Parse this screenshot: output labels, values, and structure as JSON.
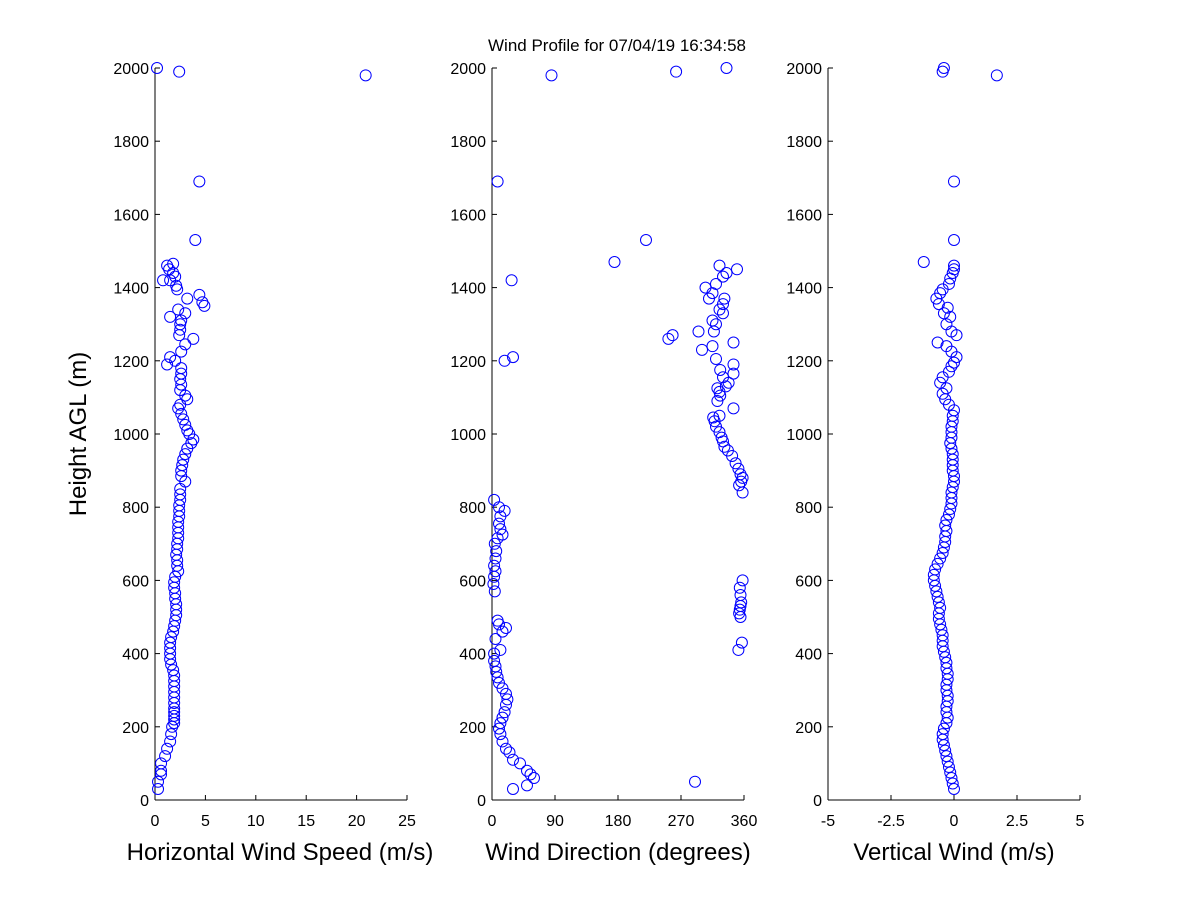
{
  "title": "Wind Profile for  07/04/19 16:34:58",
  "colors": {
    "marker": "#0000ff",
    "axis": "#000000",
    "background": "#ffffff"
  },
  "chart_data": [
    {
      "type": "scatter",
      "name": "horizontal-wind-speed",
      "xlabel": "Horizontal Wind Speed (m/s)",
      "ylabel": "Height AGL (m)",
      "xlim": [
        0,
        25
      ],
      "ylim": [
        0,
        2000
      ],
      "xticks": [
        "0",
        "5",
        "10",
        "15",
        "20",
        "25"
      ],
      "yticks": [
        "0",
        "200",
        "400",
        "600",
        "800",
        "1000",
        "1200",
        "1400",
        "1600",
        "1800",
        "2000"
      ],
      "points": [
        [
          0.3,
          30
        ],
        [
          0.3,
          50
        ],
        [
          0.6,
          70
        ],
        [
          0.6,
          80
        ],
        [
          0.6,
          100
        ],
        [
          1.0,
          120
        ],
        [
          1.2,
          140
        ],
        [
          1.5,
          160
        ],
        [
          1.6,
          180
        ],
        [
          1.7,
          200
        ],
        [
          1.9,
          210
        ],
        [
          1.9,
          220
        ],
        [
          1.9,
          230
        ],
        [
          1.9,
          240
        ],
        [
          1.9,
          250
        ],
        [
          1.9,
          265
        ],
        [
          1.9,
          280
        ],
        [
          1.9,
          295
        ],
        [
          1.9,
          310
        ],
        [
          1.9,
          325
        ],
        [
          1.9,
          340
        ],
        [
          1.8,
          355
        ],
        [
          1.6,
          370
        ],
        [
          1.5,
          385
        ],
        [
          1.5,
          400
        ],
        [
          1.5,
          415
        ],
        [
          1.5,
          430
        ],
        [
          1.6,
          445
        ],
        [
          1.8,
          460
        ],
        [
          1.9,
          475
        ],
        [
          2.0,
          490
        ],
        [
          2.1,
          505
        ],
        [
          2.1,
          520
        ],
        [
          2.1,
          535
        ],
        [
          2.0,
          550
        ],
        [
          2.0,
          565
        ],
        [
          1.9,
          580
        ],
        [
          1.9,
          595
        ],
        [
          2.0,
          610
        ],
        [
          2.3,
          625
        ],
        [
          2.2,
          640
        ],
        [
          2.2,
          655
        ],
        [
          2.1,
          670
        ],
        [
          2.2,
          685
        ],
        [
          2.2,
          700
        ],
        [
          2.3,
          715
        ],
        [
          2.3,
          730
        ],
        [
          2.3,
          745
        ],
        [
          2.3,
          760
        ],
        [
          2.4,
          775
        ],
        [
          2.4,
          790
        ],
        [
          2.4,
          805
        ],
        [
          2.5,
          820
        ],
        [
          2.5,
          835
        ],
        [
          2.5,
          850
        ],
        [
          3.0,
          870
        ],
        [
          2.6,
          885
        ],
        [
          2.6,
          900
        ],
        [
          2.7,
          915
        ],
        [
          2.8,
          930
        ],
        [
          3.0,
          945
        ],
        [
          3.2,
          960
        ],
        [
          3.6,
          975
        ],
        [
          3.8,
          985
        ],
        [
          3.4,
          1000
        ],
        [
          3.2,
          1010
        ],
        [
          3.0,
          1025
        ],
        [
          2.8,
          1040
        ],
        [
          2.6,
          1055
        ],
        [
          2.3,
          1070
        ],
        [
          2.5,
          1080
        ],
        [
          3.2,
          1095
        ],
        [
          3.0,
          1105
        ],
        [
          2.5,
          1120
        ],
        [
          2.6,
          1135
        ],
        [
          2.5,
          1150
        ],
        [
          2.6,
          1165
        ],
        [
          2.6,
          1180
        ],
        [
          2.0,
          1200
        ],
        [
          1.2,
          1190
        ],
        [
          1.5,
          1210
        ],
        [
          2.6,
          1225
        ],
        [
          3.0,
          1245
        ],
        [
          3.8,
          1260
        ],
        [
          2.4,
          1270
        ],
        [
          2.5,
          1285
        ],
        [
          2.5,
          1300
        ],
        [
          2.6,
          1310
        ],
        [
          1.5,
          1320
        ],
        [
          3.0,
          1330
        ],
        [
          2.3,
          1340
        ],
        [
          4.9,
          1350
        ],
        [
          4.7,
          1360
        ],
        [
          3.2,
          1370
        ],
        [
          4.4,
          1380
        ],
        [
          2.2,
          1395
        ],
        [
          2.1,
          1405
        ],
        [
          0.8,
          1420
        ],
        [
          1.5,
          1420
        ],
        [
          2.0,
          1430
        ],
        [
          1.8,
          1440
        ],
        [
          1.4,
          1450
        ],
        [
          1.2,
          1460
        ],
        [
          1.8,
          1465
        ],
        [
          4.0,
          1530
        ],
        [
          4.4,
          1690
        ],
        [
          0.2,
          2000
        ],
        [
          2.4,
          1990
        ],
        [
          20.9,
          1980
        ]
      ]
    },
    {
      "type": "scatter",
      "name": "wind-direction",
      "xlabel": "Wind Direction (degrees)",
      "ylabel": "",
      "xlim": [
        0,
        360
      ],
      "ylim": [
        0,
        2000
      ],
      "xticks": [
        "0",
        "90",
        "180",
        "270",
        "360"
      ],
      "yticks": [
        "0",
        "200",
        "400",
        "600",
        "800",
        "1000",
        "1200",
        "1400",
        "1600",
        "1800",
        "2000"
      ],
      "points": [
        [
          30,
          30
        ],
        [
          290,
          50
        ],
        [
          50,
          40
        ],
        [
          60,
          60
        ],
        [
          55,
          70
        ],
        [
          50,
          80
        ],
        [
          40,
          100
        ],
        [
          30,
          110
        ],
        [
          25,
          130
        ],
        [
          20,
          140
        ],
        [
          15,
          160
        ],
        [
          12,
          180
        ],
        [
          10,
          195
        ],
        [
          12,
          210
        ],
        [
          15,
          225
        ],
        [
          18,
          240
        ],
        [
          20,
          260
        ],
        [
          22,
          275
        ],
        [
          20,
          290
        ],
        [
          15,
          305
        ],
        [
          10,
          320
        ],
        [
          8,
          335
        ],
        [
          6,
          350
        ],
        [
          5,
          365
        ],
        [
          3,
          380
        ],
        [
          3,
          400
        ],
        [
          12,
          410
        ],
        [
          20,
          470
        ],
        [
          15,
          460
        ],
        [
          10,
          480
        ],
        [
          8,
          490
        ],
        [
          5,
          440
        ],
        [
          4,
          570
        ],
        [
          2,
          590
        ],
        [
          3,
          610
        ],
        [
          5,
          625
        ],
        [
          3,
          640
        ],
        [
          5,
          660
        ],
        [
          6,
          680
        ],
        [
          4,
          700
        ],
        [
          8,
          715
        ],
        [
          15,
          725
        ],
        [
          12,
          740
        ],
        [
          10,
          755
        ],
        [
          12,
          775
        ],
        [
          18,
          790
        ],
        [
          10,
          800
        ],
        [
          3,
          820
        ],
        [
          352,
          410
        ],
        [
          357,
          430
        ],
        [
          355,
          500
        ],
        [
          353,
          510
        ],
        [
          354,
          520
        ],
        [
          355,
          530
        ],
        [
          356,
          540
        ],
        [
          355,
          560
        ],
        [
          354,
          580
        ],
        [
          358,
          600
        ],
        [
          358,
          840
        ],
        [
          353,
          860
        ],
        [
          356,
          870
        ],
        [
          358,
          880
        ],
        [
          355,
          890
        ],
        [
          352,
          905
        ],
        [
          348,
          920
        ],
        [
          343,
          940
        ],
        [
          337,
          955
        ],
        [
          332,
          965
        ],
        [
          330,
          980
        ],
        [
          328,
          990
        ],
        [
          325,
          1005
        ],
        [
          320,
          1020
        ],
        [
          318,
          1035
        ],
        [
          316,
          1045
        ],
        [
          325,
          1050
        ],
        [
          345,
          1070
        ],
        [
          322,
          1090
        ],
        [
          326,
          1105
        ],
        [
          325,
          1115
        ],
        [
          322,
          1125
        ],
        [
          334,
          1130
        ],
        [
          338,
          1140
        ],
        [
          330,
          1155
        ],
        [
          345,
          1165
        ],
        [
          326,
          1175
        ],
        [
          345,
          1190
        ],
        [
          320,
          1205
        ],
        [
          300,
          1230
        ],
        [
          315,
          1240
        ],
        [
          345,
          1250
        ],
        [
          317,
          1280
        ],
        [
          295,
          1280
        ],
        [
          320,
          1300
        ],
        [
          330,
          1330
        ],
        [
          315,
          1310
        ],
        [
          325,
          1340
        ],
        [
          330,
          1355
        ],
        [
          332,
          1370
        ],
        [
          310,
          1370
        ],
        [
          315,
          1385
        ],
        [
          305,
          1400
        ],
        [
          320,
          1410
        ],
        [
          330,
          1430
        ],
        [
          335,
          1440
        ],
        [
          350,
          1450
        ],
        [
          325,
          1460
        ],
        [
          252,
          1260
        ],
        [
          258,
          1270
        ],
        [
          175,
          1470
        ],
        [
          220,
          1530
        ],
        [
          30,
          1210
        ],
        [
          18,
          1200
        ],
        [
          28,
          1420
        ],
        [
          8,
          1690
        ],
        [
          85,
          1980
        ],
        [
          263,
          1990
        ],
        [
          335,
          2000
        ]
      ]
    },
    {
      "type": "scatter",
      "name": "vertical-wind",
      "xlabel": "Vertical Wind (m/s)",
      "ylabel": "",
      "xlim": [
        -5,
        5
      ],
      "ylim": [
        0,
        2000
      ],
      "xticks": [
        "-5",
        "-2.5",
        "0",
        "2.5",
        "5"
      ],
      "yticks": [
        "0",
        "200",
        "400",
        "600",
        "800",
        "1000",
        "1200",
        "1400",
        "1600",
        "1800",
        "2000"
      ],
      "points": [
        [
          0,
          30
        ],
        [
          -0.05,
          45
        ],
        [
          -0.1,
          60
        ],
        [
          -0.15,
          75
        ],
        [
          -0.2,
          90
        ],
        [
          -0.25,
          105
        ],
        [
          -0.3,
          120
        ],
        [
          -0.35,
          135
        ],
        [
          -0.4,
          150
        ],
        [
          -0.45,
          165
        ],
        [
          -0.45,
          180
        ],
        [
          -0.4,
          195
        ],
        [
          -0.3,
          210
        ],
        [
          -0.25,
          225
        ],
        [
          -0.3,
          240
        ],
        [
          -0.3,
          255
        ],
        [
          -0.25,
          270
        ],
        [
          -0.25,
          285
        ],
        [
          -0.3,
          300
        ],
        [
          -0.3,
          315
        ],
        [
          -0.25,
          330
        ],
        [
          -0.25,
          345
        ],
        [
          -0.3,
          360
        ],
        [
          -0.3,
          375
        ],
        [
          -0.35,
          390
        ],
        [
          -0.4,
          405
        ],
        [
          -0.45,
          420
        ],
        [
          -0.45,
          435
        ],
        [
          -0.45,
          450
        ],
        [
          -0.5,
          465
        ],
        [
          -0.55,
          480
        ],
        [
          -0.6,
          495
        ],
        [
          -0.6,
          510
        ],
        [
          -0.55,
          525
        ],
        [
          -0.6,
          540
        ],
        [
          -0.65,
          555
        ],
        [
          -0.7,
          570
        ],
        [
          -0.75,
          585
        ],
        [
          -0.8,
          600
        ],
        [
          -0.8,
          615
        ],
        [
          -0.75,
          630
        ],
        [
          -0.65,
          645
        ],
        [
          -0.55,
          660
        ],
        [
          -0.45,
          675
        ],
        [
          -0.4,
          690
        ],
        [
          -0.35,
          705
        ],
        [
          -0.35,
          720
        ],
        [
          -0.3,
          735
        ],
        [
          -0.35,
          750
        ],
        [
          -0.3,
          765
        ],
        [
          -0.2,
          780
        ],
        [
          -0.15,
          795
        ],
        [
          -0.1,
          810
        ],
        [
          -0.1,
          825
        ],
        [
          -0.1,
          840
        ],
        [
          -0.05,
          855
        ],
        [
          0,
          870
        ],
        [
          0,
          885
        ],
        [
          -0.05,
          900
        ],
        [
          -0.05,
          915
        ],
        [
          -0.05,
          930
        ],
        [
          -0.05,
          945
        ],
        [
          -0.1,
          960
        ],
        [
          -0.15,
          975
        ],
        [
          -0.1,
          990
        ],
        [
          -0.1,
          1005
        ],
        [
          -0.1,
          1020
        ],
        [
          -0.05,
          1035
        ],
        [
          -0.05,
          1050
        ],
        [
          0,
          1065
        ],
        [
          -0.2,
          1080
        ],
        [
          -0.35,
          1095
        ],
        [
          -0.45,
          1110
        ],
        [
          -0.3,
          1125
        ],
        [
          -0.55,
          1140
        ],
        [
          -0.45,
          1155
        ],
        [
          -0.2,
          1170
        ],
        [
          -0.1,
          1185
        ],
        [
          0.1,
          1210
        ],
        [
          0,
          1195
        ],
        [
          -0.1,
          1225
        ],
        [
          -0.3,
          1240
        ],
        [
          -0.65,
          1250
        ],
        [
          0.1,
          1270
        ],
        [
          -0.1,
          1280
        ],
        [
          -0.3,
          1300
        ],
        [
          -0.15,
          1320
        ],
        [
          -0.4,
          1330
        ],
        [
          -0.25,
          1345
        ],
        [
          -0.6,
          1355
        ],
        [
          -0.7,
          1370
        ],
        [
          -0.55,
          1385
        ],
        [
          -0.45,
          1395
        ],
        [
          -0.2,
          1410
        ],
        [
          -0.15,
          1425
        ],
        [
          -0.05,
          1440
        ],
        [
          0,
          1450
        ],
        [
          0,
          1460
        ],
        [
          -1.2,
          1470
        ],
        [
          0,
          1530
        ],
        [
          0,
          1690
        ],
        [
          -0.45,
          1990
        ],
        [
          -0.4,
          2000
        ],
        [
          1.7,
          1980
        ]
      ]
    }
  ]
}
